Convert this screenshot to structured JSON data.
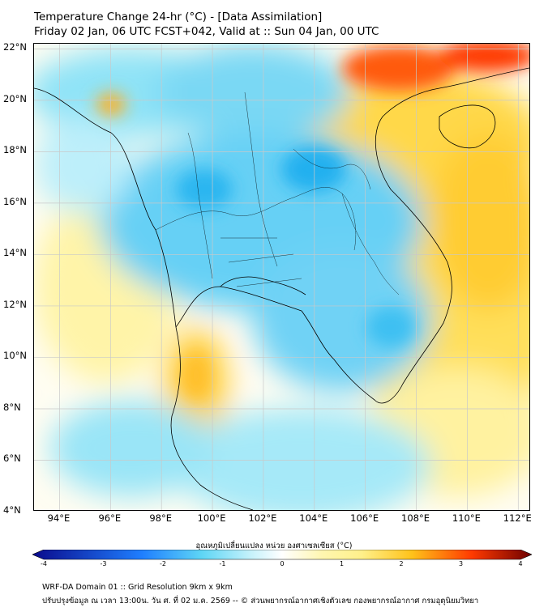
{
  "header": {
    "title_line1": "Temperature Change 24-hr (°C) - [Data Assimilation]",
    "title_line2": "Friday 02 Jan, 06 UTC FCST+042, Valid at :: Sun 04 Jan, 00 UTC"
  },
  "map": {
    "lat_labels": [
      "22°N",
      "20°N",
      "18°N",
      "16°N",
      "14°N",
      "12°N",
      "10°N",
      "8°N",
      "6°N",
      "4°N"
    ],
    "lon_labels": [
      "94°E",
      "96°E",
      "98°E",
      "100°E",
      "102°E",
      "104°E",
      "106°E",
      "108°E",
      "110°E",
      "112°E"
    ],
    "lat_range": [
      4,
      22.2
    ],
    "lon_range": [
      93,
      112.5
    ],
    "grid": true
  },
  "colorbar": {
    "title": "อุณหภูมิเปลี่ยนแปลง หน่วย องศาเซลเซียส (°C)",
    "tick_labels": [
      "-4",
      "-3",
      "-2",
      "-1",
      "0",
      "1",
      "2",
      "3",
      "4"
    ],
    "range": [
      -4,
      4
    ],
    "colors": {
      "cold_end": "#0a0a8c",
      "cold_mid": "#1f7fff",
      "cool": "#5fd6f5",
      "neutral": "#ffffff",
      "warm_light": "#fff08a",
      "warm": "#ffc21a",
      "hot": "#ff3a00",
      "hot_end": "#6e0000"
    }
  },
  "footer": {
    "line1": "WRF-DA Domain 01 :: Grid Resolution 9km x 9km",
    "line2": "ปรับปรุงข้อมูล ณ เวลา 13:00น. วัน ศ. ที่ 02 ม.ค. 2569 -- © ส่วนพยากรณ์อากาศเชิงตัวเลข กองพยากรณ์อากาศ กรมอุตุนิยมวิทยา"
  }
}
